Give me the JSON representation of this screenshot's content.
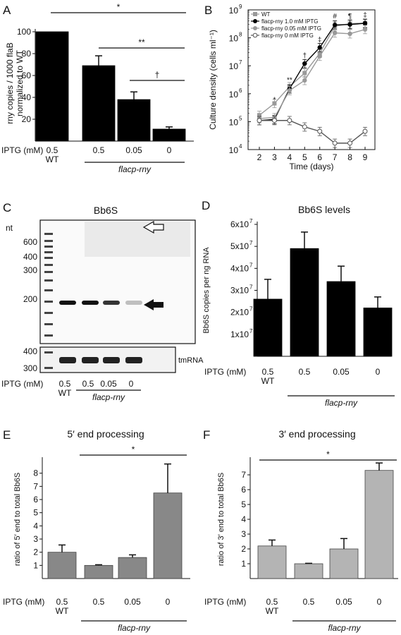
{
  "panels": {
    "A": {
      "letter": "A",
      "ylabel_line1": "rny copies / 1000 flaB",
      "ylabel_line2": "normalized to WT",
      "stars": [
        "*",
        "**",
        "†"
      ]
    },
    "B": {
      "letter": "B",
      "stars": [
        "*",
        "**",
        "†",
        "‡",
        "#",
        "¶",
        "‡"
      ]
    },
    "C": {
      "letter": "C",
      "title": "Bb6S",
      "nt_label": "nt",
      "markers": [
        "600",
        "400",
        "300",
        "200"
      ],
      "lower_markers": [
        "400",
        "300"
      ],
      "tmrna_label": "tmRNA",
      "ticks": [
        "0.5",
        "0.5",
        "0.05",
        "0"
      ],
      "wt": "WT",
      "iptg": "IPTG (mM)",
      "strain": "flacp-rny"
    },
    "D": {
      "letter": "D",
      "stars": []
    },
    "E": {
      "letter": "E",
      "stars": [
        "*"
      ]
    },
    "F": {
      "letter": "F",
      "stars": [
        "*"
      ]
    }
  },
  "chart_data": [
    {
      "panel": "A",
      "type": "bar",
      "categories": [
        "0.5",
        "0.5",
        "0.05",
        "0"
      ],
      "category_sublabels": [
        "WT",
        "",
        "",
        ""
      ],
      "group_label": "flacp-rny",
      "xlabel": "IPTG (mM)",
      "ylabel": "rny copies / 1000 flaB normalized to WT",
      "values": [
        100,
        69,
        38,
        11
      ],
      "errors": [
        0,
        9,
        7,
        2
      ],
      "ylim": [
        0,
        100
      ],
      "yticks": [
        "20",
        "40",
        "60",
        "80",
        "100"
      ],
      "color": "#000000"
    },
    {
      "panel": "B",
      "type": "line",
      "xlabel": "Time (days)",
      "ylabel": "Culture density (cells ml⁻¹)",
      "x": [
        2,
        3,
        4,
        5,
        6,
        7,
        8,
        9
      ],
      "xticks": [
        "2",
        "3",
        "4",
        "5",
        "6",
        "7",
        "8",
        "9"
      ],
      "yscale": "log",
      "ylim": [
        10000,
        1000000000
      ],
      "ytick_exponents": [
        "4",
        "5",
        "6",
        "7",
        "8",
        "9"
      ],
      "ytick_base": "10",
      "legend_position": "top-left",
      "series": [
        {
          "name": "WT",
          "marker": "square",
          "color": "#999999",
          "values": [
            170000,
            450000,
            1800000,
            5500000,
            28000000,
            260000000,
            320000000,
            340000000
          ]
        },
        {
          "name": "flacp-rny 1.0 mM IPTG",
          "marker": "circle",
          "color": "#000000",
          "values": [
            110000,
            120000,
            1500000,
            12000000,
            45000000,
            290000000,
            300000000,
            330000000
          ]
        },
        {
          "name": "flacp-rny 0.05 mM IPTG",
          "marker": "circle",
          "color": "#999999",
          "values": [
            130000,
            140000,
            1300000,
            3000000,
            22000000,
            150000000,
            140000000,
            200000000
          ]
        },
        {
          "name": "flacp-rny 0 mM IPTG",
          "marker": "open-circle",
          "color": "#555555",
          "values": [
            110000,
            110000,
            110000,
            65000,
            45000,
            17000,
            17000,
            45000
          ]
        }
      ]
    },
    {
      "panel": "D",
      "type": "bar",
      "title": "Bb6S levels",
      "categories": [
        "0.5",
        "0.5",
        "0.05",
        "0"
      ],
      "category_sublabels": [
        "WT",
        "",
        "",
        ""
      ],
      "group_label": "flacp-rny",
      "xlabel": "IPTG (mM)",
      "ylabel": "Bb6S copies per ng RNA",
      "values": [
        26000000,
        49000000,
        34000000,
        22000000
      ],
      "errors": [
        9000000,
        7500000,
        7000000,
        5000000
      ],
      "ylim": [
        0,
        60000000
      ],
      "ytick_mantissas": [
        "1x10",
        "2x10",
        "3x10",
        "4x10",
        "5x10",
        "6x10"
      ],
      "ytick_exponent": "7",
      "color": "#000000"
    },
    {
      "panel": "E",
      "type": "bar",
      "title": "5′ end  processing",
      "categories": [
        "0.5",
        "0.5",
        "0.05",
        "0"
      ],
      "category_sublabels": [
        "WT",
        "",
        "",
        ""
      ],
      "group_label": "flacp-rny",
      "xlabel": "IPTG (mM)",
      "ylabel": "ratio of 5′ end to total Bb6S",
      "values": [
        2.0,
        1.0,
        1.6,
        6.5
      ],
      "errors": [
        0.55,
        0.05,
        0.2,
        2.2
      ],
      "ylim": [
        0,
        9
      ],
      "yticks": [
        "1",
        "2",
        "3",
        "4",
        "5",
        "6",
        "7",
        "8"
      ],
      "color": "#888888"
    },
    {
      "panel": "F",
      "type": "bar",
      "title": "3′ end  processing",
      "categories": [
        "0.5",
        "0.5",
        "0.05",
        "0"
      ],
      "category_sublabels": [
        "WT",
        "",
        "",
        ""
      ],
      "group_label": "flacp-rny",
      "xlabel": "IPTG (mM)",
      "ylabel": "ratio of 3′ end to total Bb6S",
      "values": [
        2.2,
        1.0,
        2.0,
        7.3
      ],
      "errors": [
        0.4,
        0.03,
        0.7,
        0.5
      ],
      "ylim": [
        0,
        8
      ],
      "yticks": [
        "1",
        "2",
        "3",
        "4",
        "5",
        "6",
        "7"
      ],
      "color": "#b4b4b4"
    }
  ]
}
